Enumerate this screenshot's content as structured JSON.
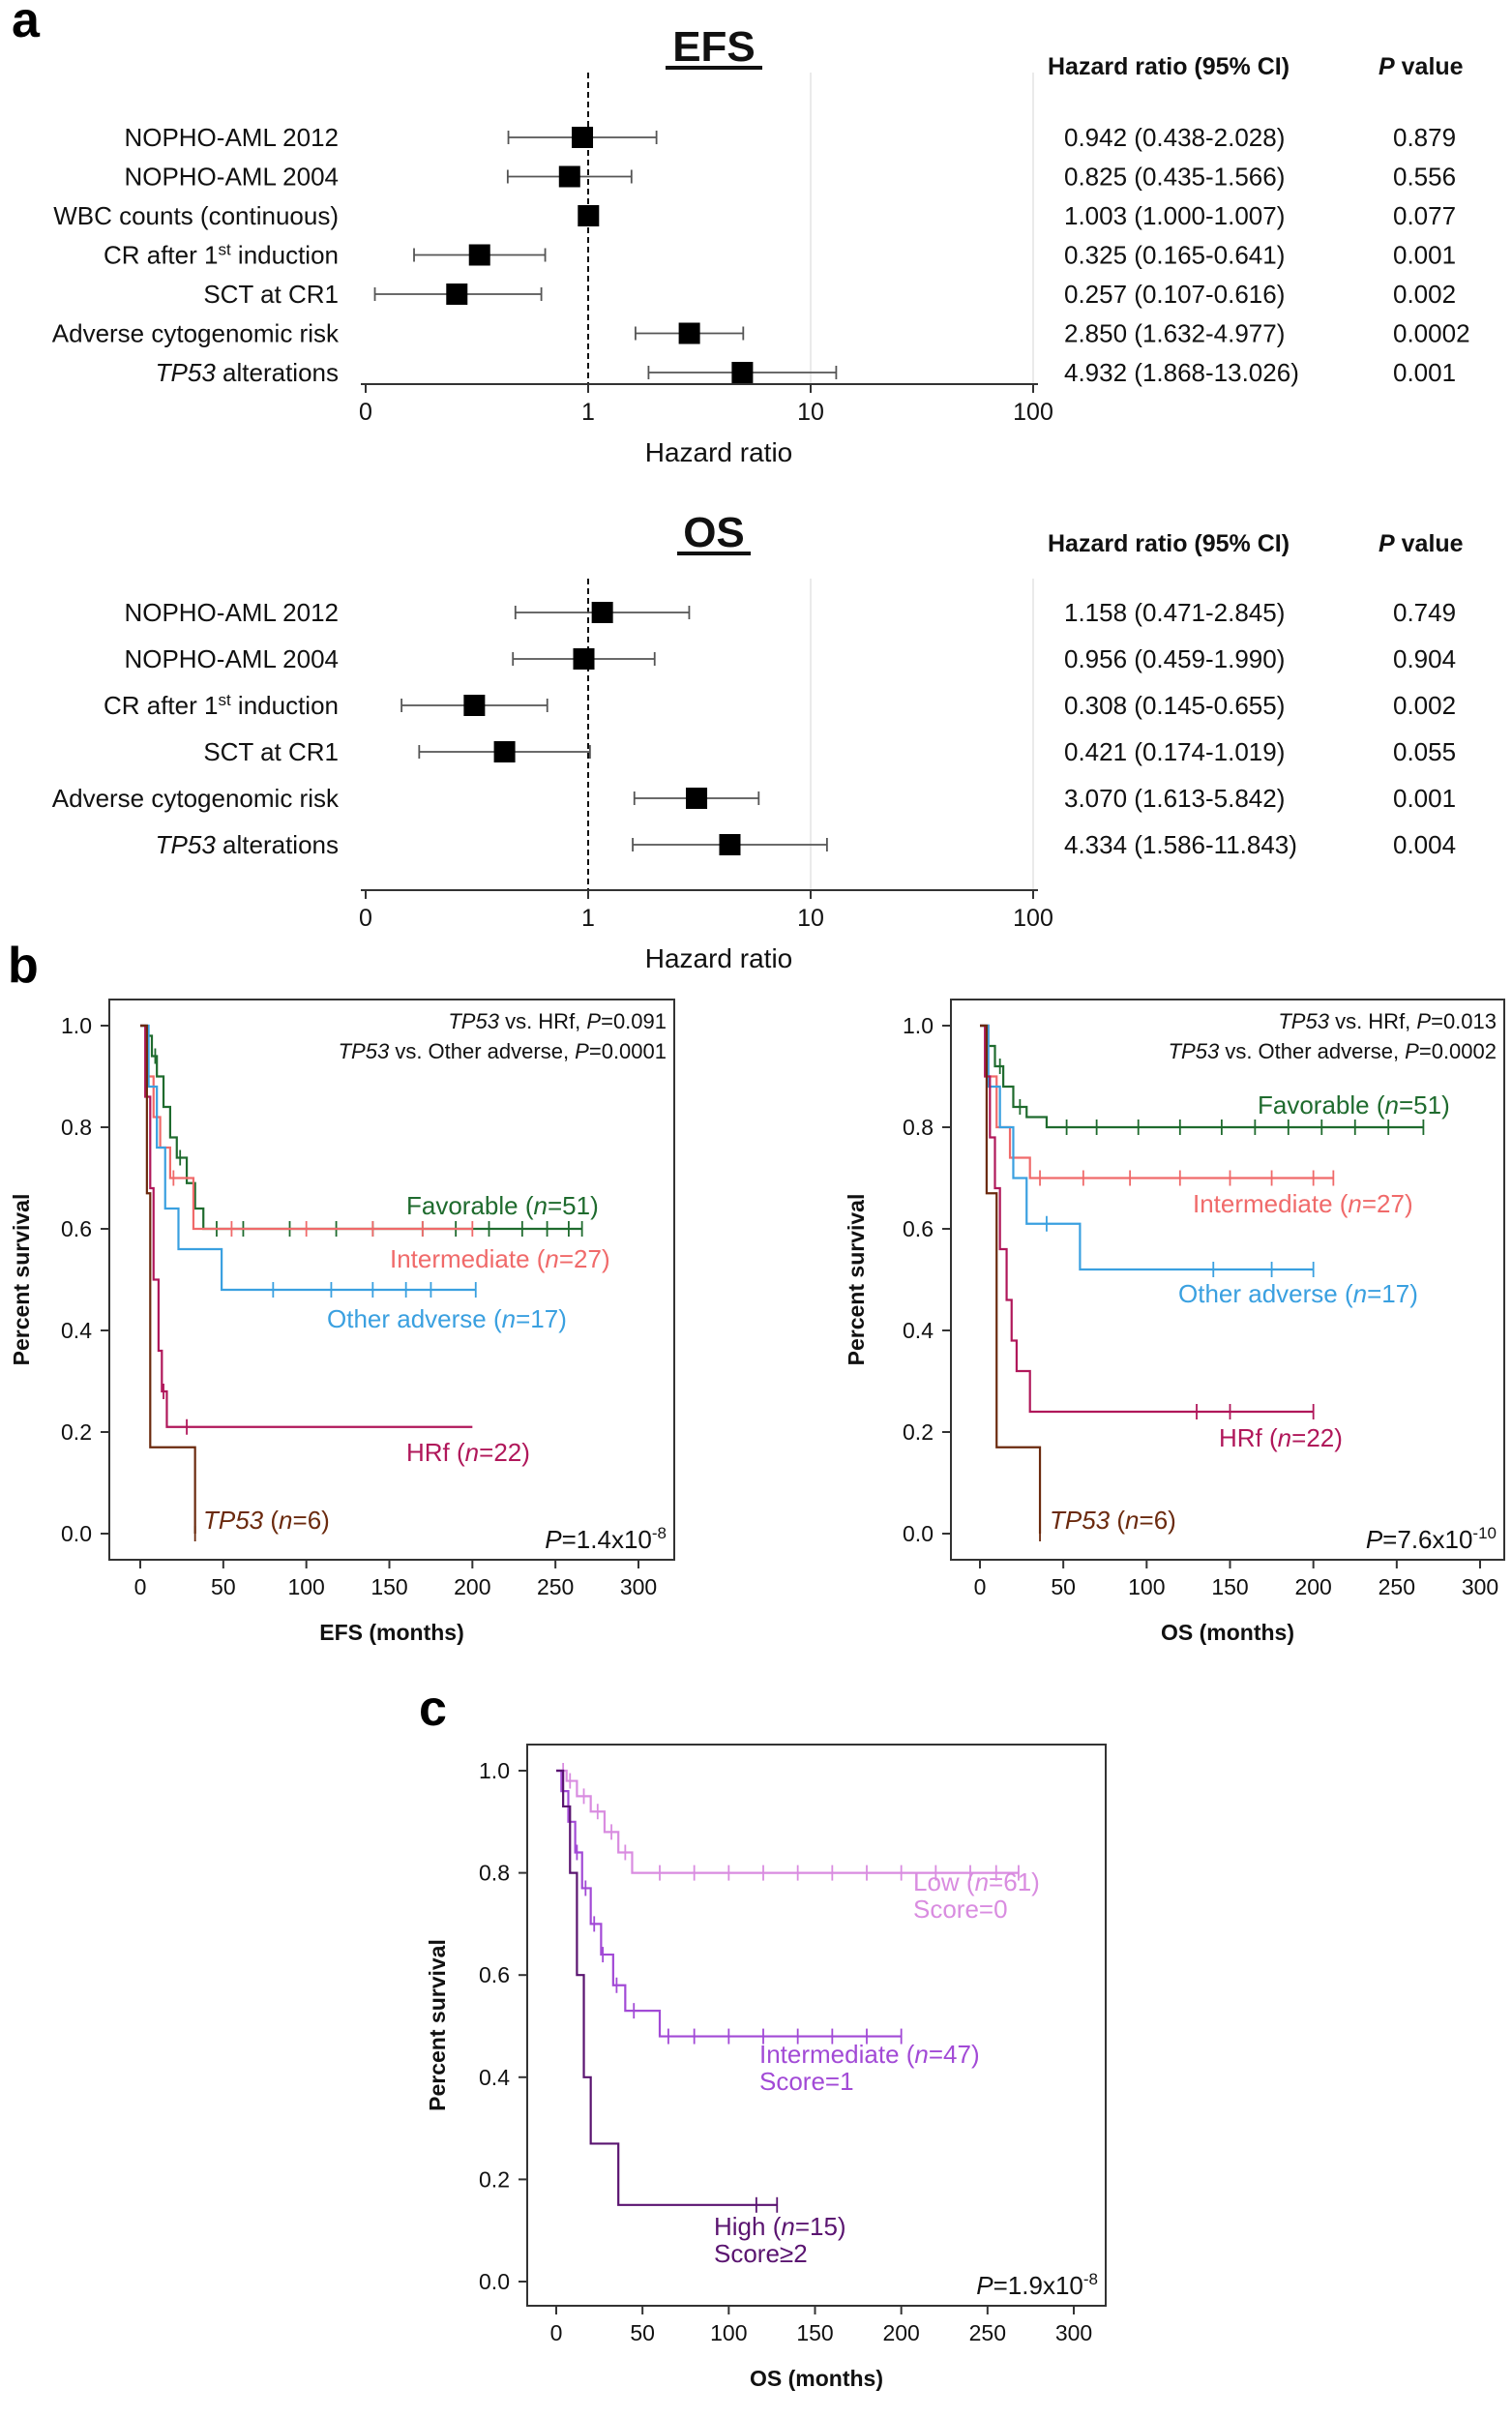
{
  "panel_letters": {
    "a": "a",
    "b": "b",
    "c": "c"
  },
  "colors": {
    "favorable": "#1f6b2e",
    "intermediate": "#f06a6a",
    "other_adverse": "#3aa0e0",
    "hrf": "#b0175a",
    "tp53": "#6b2a0e",
    "low": "#d98ce0",
    "intermediate_c": "#a24ad6",
    "high": "#5a1470"
  },
  "chart_data": [
    {
      "id": "forest_efs",
      "type": "forest",
      "title": "EFS",
      "header_hr": "Hazard ratio (95% CI)",
      "header_p_italic": "P",
      "header_p_rest": " value",
      "xlabel": "Hazard ratio",
      "x_scale": "log",
      "x_ticks": [
        "0",
        "1",
        "10",
        "100"
      ],
      "reference_line": 1,
      "rows": [
        {
          "label": "NOPHO-AML 2012",
          "hr": 0.942,
          "lo": 0.438,
          "hi": 2.028,
          "hr_text": "0.942 (0.438-2.028)",
          "p": "0.879"
        },
        {
          "label": "NOPHO-AML 2004",
          "hr": 0.825,
          "lo": 0.435,
          "hi": 1.566,
          "hr_text": "0.825 (0.435-1.566)",
          "p": "0.556"
        },
        {
          "label": "WBC counts (continuous)",
          "hr": 1.003,
          "lo": 1.0,
          "hi": 1.007,
          "hr_text": "1.003 (1.000-1.007)",
          "p": "0.077"
        },
        {
          "label": "CR after 1st induction",
          "hr": 0.325,
          "lo": 0.165,
          "hi": 0.641,
          "hr_text": "0.325 (0.165-0.641)",
          "p": "0.001"
        },
        {
          "label": "SCT at CR1",
          "hr": 0.257,
          "lo": 0.107,
          "hi": 0.616,
          "hr_text": "0.257 (0.107-0.616)",
          "p": "0.002"
        },
        {
          "label": "Adverse cytogenomic risk",
          "hr": 2.85,
          "lo": 1.632,
          "hi": 4.977,
          "hr_text": "2.850 (1.632-4.977)",
          "p": "0.0002"
        },
        {
          "label": "TP53 alterations",
          "hr": 4.932,
          "lo": 1.868,
          "hi": 13.026,
          "hr_text": "4.932 (1.868-13.026)",
          "p": "0.001"
        }
      ]
    },
    {
      "id": "forest_os",
      "type": "forest",
      "title": "OS",
      "header_hr": "Hazard ratio (95% CI)",
      "header_p_italic": "P",
      "header_p_rest": " value",
      "xlabel": "Hazard ratio",
      "x_scale": "log",
      "x_ticks": [
        "0",
        "1",
        "10",
        "100"
      ],
      "reference_line": 1,
      "rows": [
        {
          "label": "NOPHO-AML 2012",
          "hr": 1.158,
          "lo": 0.471,
          "hi": 2.845,
          "hr_text": "1.158 (0.471-2.845)",
          "p": "0.749"
        },
        {
          "label": "NOPHO-AML 2004",
          "hr": 0.956,
          "lo": 0.459,
          "hi": 1.99,
          "hr_text": "0.956 (0.459-1.990)",
          "p": "0.904"
        },
        {
          "label": "CR after 1st induction",
          "hr": 0.308,
          "lo": 0.145,
          "hi": 0.655,
          "hr_text": "0.308 (0.145-0.655)",
          "p": "0.002"
        },
        {
          "label": "SCT at CR1",
          "hr": 0.421,
          "lo": 0.174,
          "hi": 1.019,
          "hr_text": "0.421 (0.174-1.019)",
          "p": "0.055"
        },
        {
          "label": "Adverse cytogenomic risk",
          "hr": 3.07,
          "lo": 1.613,
          "hi": 5.842,
          "hr_text": "3.070 (1.613-5.842)",
          "p": "0.001"
        },
        {
          "label": "TP53 alterations",
          "hr": 4.334,
          "lo": 1.586,
          "hi": 11.843,
          "hr_text": "4.334 (1.586-11.843)",
          "p": "0.004"
        }
      ]
    },
    {
      "id": "km_efs",
      "type": "line",
      "subtype": "kaplan-meier",
      "xlabel": "EFS (months)",
      "ylabel": "Percent survival",
      "xlim": [
        0,
        300
      ],
      "ylim": [
        0,
        1
      ],
      "x_ticks": [
        0,
        50,
        100,
        150,
        200,
        250,
        300
      ],
      "y_ticks": [
        "0.0",
        "0.2",
        "0.4",
        "0.6",
        "0.8",
        "1.0"
      ],
      "annotations": [
        {
          "italic": "TP53",
          "text": " vs. HRf, P=0.091"
        },
        {
          "italic": "TP53",
          "text": " vs. Other adverse, P=0.0001"
        }
      ],
      "pvalue": {
        "prefix": "P",
        "text": "=1.4x10",
        "exp": "-8"
      },
      "series": [
        {
          "name": "Favorable",
          "n": "51",
          "color_key": "favorable",
          "steps": [
            [
              0,
              1.0
            ],
            [
              4,
              0.98
            ],
            [
              7,
              0.94
            ],
            [
              10,
              0.9
            ],
            [
              14,
              0.84
            ],
            [
              18,
              0.78
            ],
            [
              22,
              0.74
            ],
            [
              28,
              0.69
            ],
            [
              33,
              0.64
            ],
            [
              38,
              0.6
            ],
            [
              266,
              0.6
            ]
          ],
          "censors": [
            9,
            24,
            46,
            62,
            90,
            118,
            140,
            170,
            190,
            210,
            230,
            245,
            258,
            266
          ]
        },
        {
          "name": "Intermediate",
          "n": "27",
          "color_key": "intermediate",
          "steps": [
            [
              0,
              1.0
            ],
            [
              4,
              0.9
            ],
            [
              8,
              0.82
            ],
            [
              12,
              0.76
            ],
            [
              18,
              0.7
            ],
            [
              32,
              0.6
            ],
            [
              200,
              0.6
            ]
          ],
          "censors": [
            20,
            55,
            100,
            140,
            170,
            200
          ]
        },
        {
          "name": "Other adverse",
          "n": "17",
          "color_key": "other_adverse",
          "steps": [
            [
              0,
              1.0
            ],
            [
              5,
              0.88
            ],
            [
              10,
              0.76
            ],
            [
              15,
              0.64
            ],
            [
              23,
              0.56
            ],
            [
              49,
              0.48
            ],
            [
              202,
              0.48
            ]
          ],
          "censors": [
            80,
            115,
            140,
            160,
            175,
            202
          ]
        },
        {
          "name": "HRf",
          "n": "22",
          "color_key": "hrf",
          "steps": [
            [
              0,
              1.0
            ],
            [
              3,
              0.86
            ],
            [
              6,
              0.68
            ],
            [
              8,
              0.5
            ],
            [
              11,
              0.36
            ],
            [
              13,
              0.28
            ],
            [
              16,
              0.21
            ],
            [
              200,
              0.21
            ]
          ],
          "censors": [
            14,
            28
          ]
        },
        {
          "name": "TP53",
          "n": "6",
          "color_key": "tp53",
          "steps": [
            [
              0,
              1.0
            ],
            [
              4,
              0.67
            ],
            [
              6,
              0.17
            ],
            [
              33,
              0.0
            ]
          ],
          "censors": [
            33
          ]
        }
      ]
    },
    {
      "id": "km_os",
      "type": "line",
      "subtype": "kaplan-meier",
      "xlabel": "OS (months)",
      "ylabel": "Percent survival",
      "xlim": [
        0,
        300
      ],
      "ylim": [
        0,
        1
      ],
      "x_ticks": [
        0,
        50,
        100,
        150,
        200,
        250,
        300
      ],
      "y_ticks": [
        "0.0",
        "0.2",
        "0.4",
        "0.6",
        "0.8",
        "1.0"
      ],
      "annotations": [
        {
          "italic": "TP53",
          "text": " vs. HRf, P=0.013"
        },
        {
          "italic": "TP53",
          "text": " vs. Other adverse, P=0.0002"
        }
      ],
      "pvalue": {
        "prefix": "P",
        "text": "=7.6x10",
        "exp": "-10"
      },
      "series": [
        {
          "name": "Favorable",
          "n": "51",
          "color_key": "favorable",
          "steps": [
            [
              0,
              1.0
            ],
            [
              5,
              0.96
            ],
            [
              9,
              0.92
            ],
            [
              14,
              0.88
            ],
            [
              20,
              0.84
            ],
            [
              28,
              0.82
            ],
            [
              40,
              0.8
            ],
            [
              266,
              0.8
            ]
          ],
          "censors": [
            12,
            24,
            52,
            70,
            95,
            120,
            145,
            165,
            185,
            205,
            225,
            245,
            266
          ]
        },
        {
          "name": "Intermediate",
          "n": "27",
          "color_key": "intermediate",
          "steps": [
            [
              0,
              1.0
            ],
            [
              5,
              0.9
            ],
            [
              10,
              0.8
            ],
            [
              18,
              0.74
            ],
            [
              30,
              0.7
            ],
            [
              212,
              0.7
            ]
          ],
          "censors": [
            36,
            62,
            90,
            120,
            150,
            175,
            200,
            212
          ]
        },
        {
          "name": "Other adverse",
          "n": "17",
          "color_key": "other_adverse",
          "steps": [
            [
              0,
              1.0
            ],
            [
              5,
              0.88
            ],
            [
              12,
              0.8
            ],
            [
              20,
              0.7
            ],
            [
              28,
              0.61
            ],
            [
              60,
              0.52
            ],
            [
              200,
              0.52
            ]
          ],
          "censors": [
            40,
            140,
            175,
            200
          ]
        },
        {
          "name": "HRf",
          "n": "22",
          "color_key": "hrf",
          "steps": [
            [
              0,
              1.0
            ],
            [
              3,
              0.9
            ],
            [
              6,
              0.78
            ],
            [
              9,
              0.68
            ],
            [
              12,
              0.56
            ],
            [
              16,
              0.46
            ],
            [
              19,
              0.38
            ],
            [
              22,
              0.32
            ],
            [
              30,
              0.24
            ],
            [
              200,
              0.24
            ]
          ],
          "censors": [
            130,
            150,
            200
          ]
        },
        {
          "name": "TP53",
          "n": "6",
          "color_key": "tp53",
          "steps": [
            [
              0,
              1.0
            ],
            [
              4,
              0.67
            ],
            [
              10,
              0.17
            ],
            [
              36,
              0.0
            ]
          ],
          "censors": [
            36
          ]
        }
      ]
    },
    {
      "id": "km_score",
      "type": "line",
      "subtype": "kaplan-meier",
      "xlabel": "OS (months)",
      "ylabel": "Percent survival",
      "xlim": [
        0,
        300
      ],
      "ylim": [
        0,
        1
      ],
      "x_ticks": [
        0,
        50,
        100,
        150,
        200,
        250,
        300
      ],
      "y_ticks": [
        "0.0",
        "0.2",
        "0.4",
        "0.6",
        "0.8",
        "1.0"
      ],
      "annotations": [],
      "pvalue": {
        "prefix": "P",
        "text": "=1.9x10",
        "exp": "-8"
      },
      "series": [
        {
          "name": "Low",
          "n": "61",
          "score": "Score=0",
          "color_key": "low",
          "steps": [
            [
              0,
              1.0
            ],
            [
              6,
              0.98
            ],
            [
              12,
              0.95
            ],
            [
              20,
              0.92
            ],
            [
              28,
              0.88
            ],
            [
              36,
              0.84
            ],
            [
              44,
              0.8
            ],
            [
              268,
              0.8
            ]
          ],
          "censors": [
            4,
            8,
            16,
            24,
            32,
            40,
            60,
            80,
            100,
            120,
            140,
            160,
            180,
            200,
            220,
            240,
            255,
            268
          ]
        },
        {
          "name": "Intermediate",
          "n": "47",
          "score": "Score=1",
          "color_key": "intermediate_c",
          "steps": [
            [
              0,
              1.0
            ],
            [
              3,
              0.96
            ],
            [
              7,
              0.9
            ],
            [
              11,
              0.84
            ],
            [
              15,
              0.77
            ],
            [
              20,
              0.7
            ],
            [
              26,
              0.64
            ],
            [
              33,
              0.58
            ],
            [
              40,
              0.53
            ],
            [
              60,
              0.48
            ],
            [
              200,
              0.48
            ]
          ],
          "censors": [
            12,
            17,
            22,
            27,
            35,
            45,
            65,
            80,
            100,
            120,
            140,
            160,
            180,
            200
          ]
        },
        {
          "name": "High",
          "n": "15",
          "score": "Score≥2",
          "color_key": "high",
          "steps": [
            [
              0,
              1.0
            ],
            [
              4,
              0.93
            ],
            [
              8,
              0.8
            ],
            [
              12,
              0.6
            ],
            [
              16,
              0.4
            ],
            [
              20,
              0.27
            ],
            [
              36,
              0.15
            ],
            [
              128,
              0.15
            ]
          ],
          "censors": [
            116,
            128
          ]
        }
      ]
    }
  ]
}
